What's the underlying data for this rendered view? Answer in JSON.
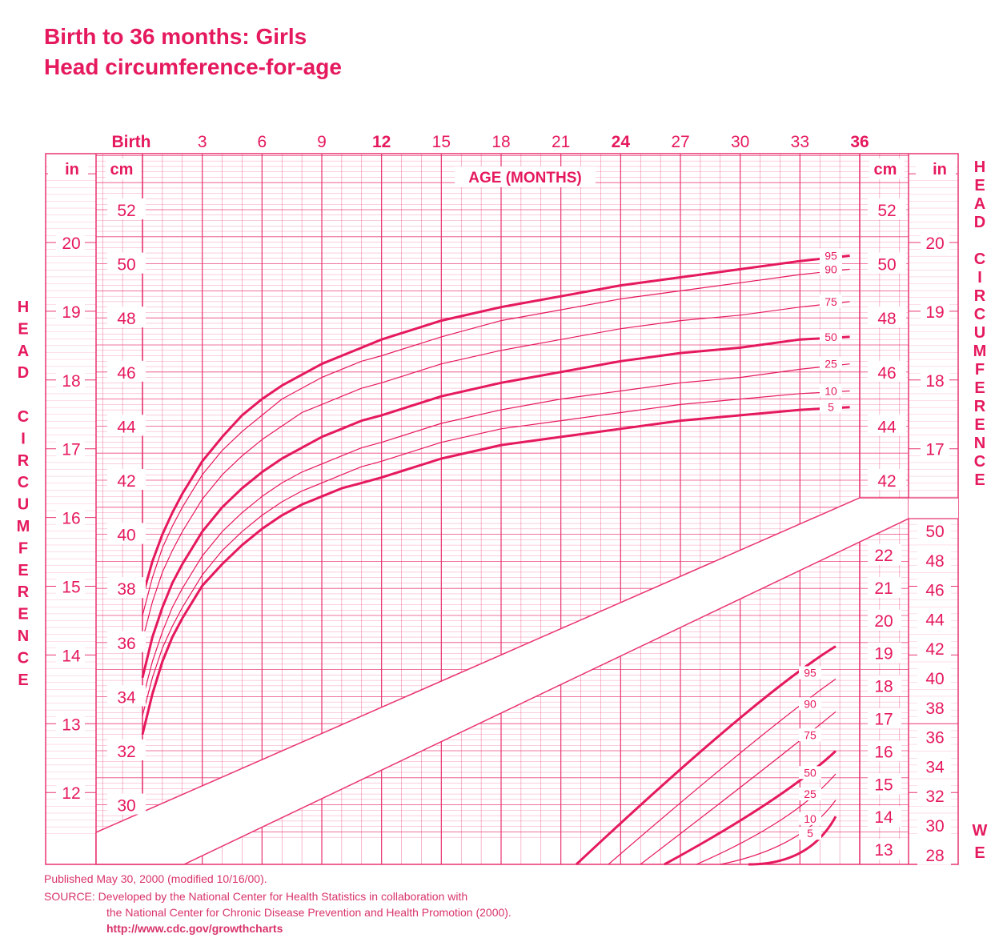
{
  "title_line1": "Birth to 36 months: Girls",
  "title_line2": "Head circumference-for-age",
  "footer": {
    "published": "Published May 30, 2000 (modified 10/16/00).",
    "source": "SOURCE: Developed by the National Center for Health Statistics in collaboration with",
    "source2": "the National Center for Chronic Disease Prevention and Health Promotion (2000).",
    "url": "http://www.cdc.gov/growthcharts"
  },
  "colors": {
    "accent": "#e5195e",
    "grid": "#e8336f",
    "fill": "#ffffff"
  },
  "chart_data": [
    {
      "type": "line",
      "title": "Head circumference-for-age",
      "xlabel": "AGE (MONTHS)",
      "ylabel": "HEAD CIRCUMFERENCE",
      "xlim": [
        0,
        36
      ],
      "ylim": [
        28.9,
        54
      ],
      "grid": true,
      "x_tick_labels": [
        "Birth",
        "3",
        "6",
        "9",
        "12",
        "15",
        "18",
        "21",
        "24",
        "27",
        "30",
        "33",
        "36"
      ],
      "x_ticks": [
        0,
        3,
        6,
        9,
        12,
        15,
        18,
        21,
        24,
        27,
        30,
        33,
        36
      ],
      "y_ticks_cm": [
        30,
        32,
        34,
        36,
        38,
        40,
        42,
        44,
        46,
        48,
        50,
        52
      ],
      "y_ticks_in": [
        12,
        13,
        14,
        15,
        16,
        17,
        18,
        19,
        20
      ],
      "axis_units": {
        "cm": "cm",
        "in": "in"
      },
      "percentile_labels": [
        "95",
        "90",
        "75",
        "50",
        "25",
        "10",
        "5"
      ],
      "x": [
        0,
        0.5,
        1,
        1.5,
        2,
        3,
        4,
        5,
        6,
        7,
        8,
        9,
        10,
        11,
        12,
        15,
        18,
        21,
        24,
        27,
        30,
        33,
        35.5
      ],
      "series": [
        {
          "name": "95",
          "values": [
            37.7,
            39.0,
            40.0,
            40.8,
            41.5,
            42.7,
            43.6,
            44.4,
            45.0,
            45.5,
            45.9,
            46.3,
            46.6,
            46.9,
            47.2,
            47.9,
            48.4,
            48.8,
            49.2,
            49.5,
            49.8,
            50.1,
            50.3
          ]
        },
        {
          "name": "90",
          "values": [
            37.0,
            38.4,
            39.5,
            40.3,
            41.0,
            42.2,
            43.1,
            43.8,
            44.4,
            45.0,
            45.4,
            45.8,
            46.1,
            46.4,
            46.6,
            47.3,
            47.9,
            48.3,
            48.7,
            49.0,
            49.3,
            49.6,
            49.8
          ]
        },
        {
          "name": "75",
          "values": [
            36.1,
            37.5,
            38.6,
            39.4,
            40.1,
            41.3,
            42.2,
            42.9,
            43.5,
            44.0,
            44.5,
            44.8,
            45.1,
            45.4,
            45.6,
            46.3,
            46.8,
            47.2,
            47.6,
            47.9,
            48.1,
            48.4,
            48.6
          ]
        },
        {
          "name": "50",
          "values": [
            34.7,
            36.2,
            37.3,
            38.2,
            38.9,
            40.1,
            41.0,
            41.7,
            42.3,
            42.8,
            43.2,
            43.6,
            43.9,
            44.2,
            44.4,
            45.1,
            45.6,
            46.0,
            46.4,
            46.7,
            46.9,
            47.2,
            47.3
          ]
        },
        {
          "name": "25",
          "values": [
            33.9,
            35.3,
            36.4,
            37.3,
            38.0,
            39.2,
            40.1,
            40.8,
            41.4,
            41.9,
            42.3,
            42.6,
            42.9,
            43.2,
            43.4,
            44.1,
            44.6,
            45.0,
            45.3,
            45.6,
            45.8,
            46.1,
            46.3
          ]
        },
        {
          "name": "10",
          "values": [
            33.3,
            34.7,
            35.8,
            36.6,
            37.3,
            38.5,
            39.4,
            40.1,
            40.7,
            41.2,
            41.6,
            41.9,
            42.2,
            42.5,
            42.7,
            43.4,
            43.9,
            44.2,
            44.5,
            44.8,
            45.0,
            45.2,
            45.3
          ]
        },
        {
          "name": "5",
          "values": [
            32.6,
            34.1,
            35.3,
            36.2,
            36.9,
            38.1,
            38.9,
            39.6,
            40.2,
            40.7,
            41.1,
            41.4,
            41.7,
            41.9,
            42.1,
            42.8,
            43.3,
            43.6,
            43.9,
            44.2,
            44.4,
            44.6,
            44.7
          ]
        }
      ]
    },
    {
      "type": "line",
      "title": "",
      "xlabel": "",
      "ylabel": "WE",
      "ylim": [
        11,
        23.5
      ],
      "y_ticks_kg": [
        13,
        14,
        15,
        16,
        17,
        18,
        19,
        20,
        21,
        22
      ],
      "y_ticks_lb": [
        28,
        30,
        32,
        34,
        36,
        38,
        40,
        42,
        44,
        46,
        48,
        50
      ],
      "percentile_labels": [
        "95",
        "90",
        "75",
        "50",
        "25",
        "10",
        "5"
      ],
      "x": [
        0,
        1
      ],
      "series": [
        {
          "name": "95",
          "values": [
            13.5,
            19.2
          ]
        },
        {
          "name": "90",
          "values": [
            13.0,
            18.2
          ]
        },
        {
          "name": "75",
          "values": [
            12.2,
            17.2
          ]
        },
        {
          "name": "50",
          "values": [
            12.0,
            16.0
          ]
        },
        {
          "name": "25",
          "values": [
            11.5,
            15.3
          ]
        },
        {
          "name": "10",
          "values": [
            11.1,
            14.5
          ]
        },
        {
          "name": "5",
          "values": [
            11.0,
            14.0
          ]
        }
      ]
    }
  ]
}
